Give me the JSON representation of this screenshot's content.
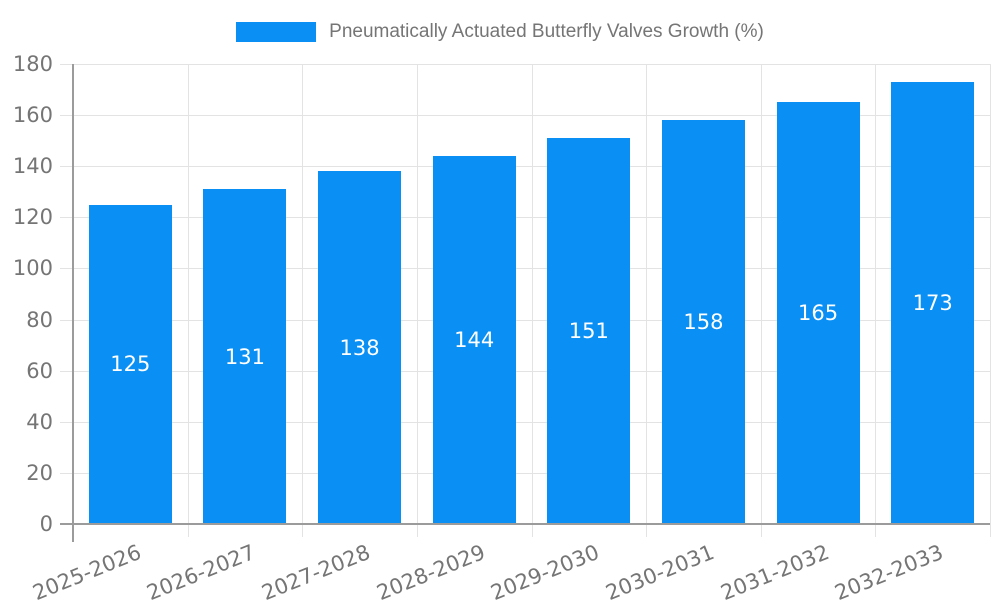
{
  "chart_data": {
    "type": "bar",
    "title": "Pneumatically Actuated Butterfly Valves Growth (%)",
    "categories": [
      "2025-2026",
      "2026-2027",
      "2027-2028",
      "2028-2029",
      "2029-2030",
      "2030-2031",
      "2031-2032",
      "2032-2033"
    ],
    "values": [
      125,
      131,
      138,
      144,
      151,
      158,
      165,
      173
    ],
    "xlabel": "",
    "ylabel": "",
    "ylim": [
      0,
      180
    ],
    "yticks": [
      0,
      20,
      40,
      60,
      80,
      100,
      120,
      140,
      160,
      180
    ],
    "grid": true,
    "legend_position": "top-center",
    "data_labels_position": "inside-middle",
    "colors": {
      "bar": "#0a90f5",
      "grid": "#e3e3e3",
      "axis": "#9b9b9b",
      "tick_text": "#757575",
      "data_label_text": "#ffffff",
      "background": "#ffffff"
    }
  }
}
